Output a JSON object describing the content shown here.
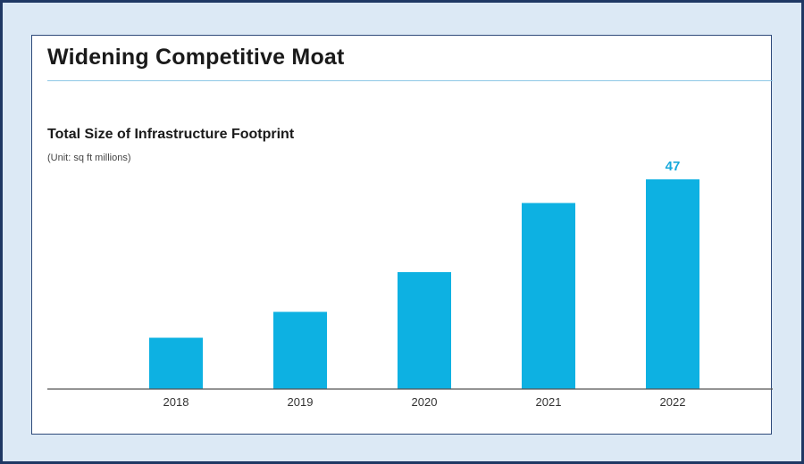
{
  "header": {
    "title": "Widening Competitive Moat"
  },
  "chart_data": {
    "type": "bar",
    "title": "Total Size of Infrastructure Footprint",
    "subtitle": "(Unit: sq ft millions)",
    "categories": [
      "2018",
      "2019",
      "2020",
      "2021",
      "2022"
    ],
    "values": [
      11.5,
      17.3,
      26.2,
      41.7,
      47
    ],
    "data_labels": [
      "",
      "",
      "",
      "",
      "47"
    ],
    "xlabel": "",
    "ylabel": "",
    "ylim": [
      0,
      50
    ],
    "grid": false,
    "legend": "none",
    "colors": {
      "bar": "#0db1e2",
      "label": "#17a9dc",
      "axis": "#555555"
    }
  }
}
